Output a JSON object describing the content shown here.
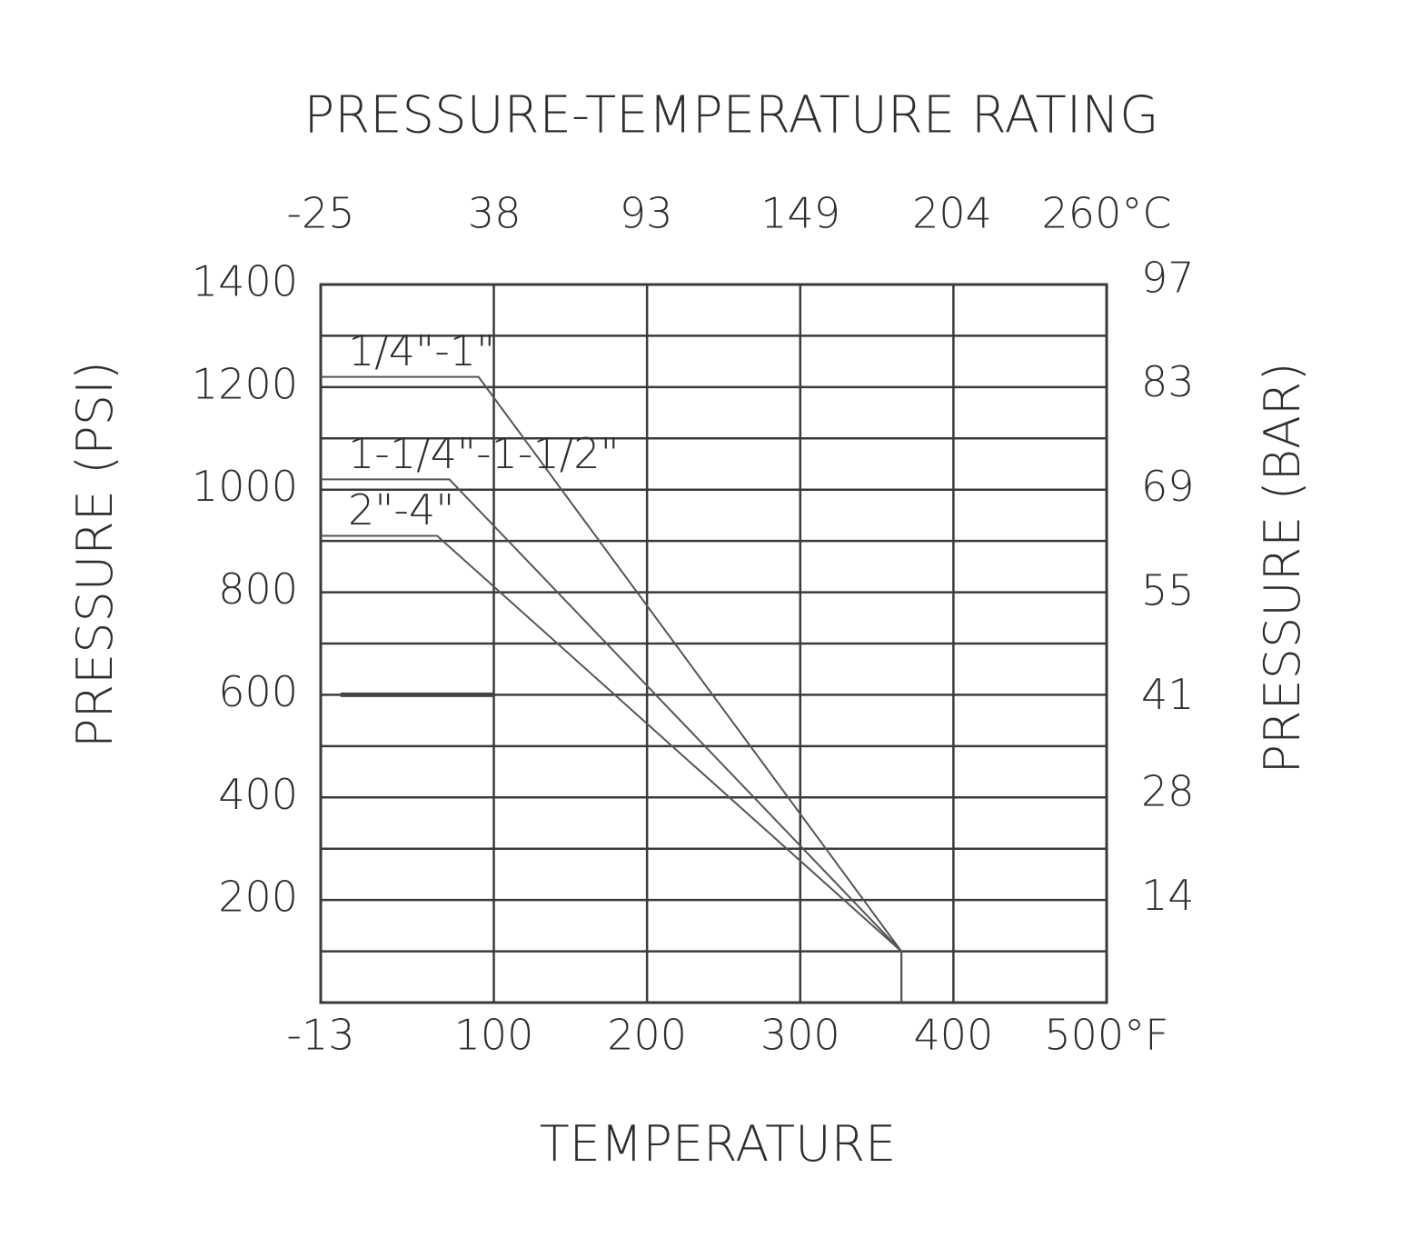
{
  "chart_data": {
    "type": "line",
    "title": "PRESSURE-TEMPERATURE RATING",
    "x_label": "TEMPERATURE",
    "y_label": "PRESSURE (PSI)",
    "y2_label": "PRESSURE (BAR)",
    "xlim": [
      -13,
      500
    ],
    "xticks": [
      -13,
      100,
      200,
      300,
      400,
      {
        "value": 500,
        "label": "500°F"
      }
    ],
    "x2lim": [
      -25,
      260
    ],
    "x2ticks": [
      -25,
      38,
      93,
      149,
      204,
      {
        "value": 260,
        "label": "260°C"
      }
    ],
    "ylim": [
      0,
      1400
    ],
    "yticks": [
      200,
      400,
      600,
      800,
      1000,
      1200,
      1400
    ],
    "y_minor_ticks": [
      100,
      300,
      500,
      700,
      900,
      1100,
      1300
    ],
    "y2lim": [
      0,
      96.53
    ],
    "y2ticks": [
      14,
      28,
      41,
      55,
      69,
      83,
      97
    ],
    "grid": true,
    "series": [
      {
        "name": "1/4\"-1\"",
        "color": "#555555",
        "x": [
          -13,
          90,
          366,
          366
        ],
        "values": [
          1220,
          1220,
          100,
          0
        ]
      },
      {
        "name": "1-1/4\"-1-1/2\"",
        "color": "#555555",
        "x": [
          -13,
          71,
          366,
          366
        ],
        "values": [
          1020,
          1020,
          100,
          0
        ]
      },
      {
        "name": "2\"-4\"",
        "color": "#555555",
        "x": [
          -13,
          63,
          366,
          366
        ],
        "values": [
          910,
          910,
          100,
          0
        ]
      },
      {
        "color": "#444444",
        "x": [
          0,
          100
        ],
        "values": [
          600,
          600
        ]
      }
    ]
  }
}
